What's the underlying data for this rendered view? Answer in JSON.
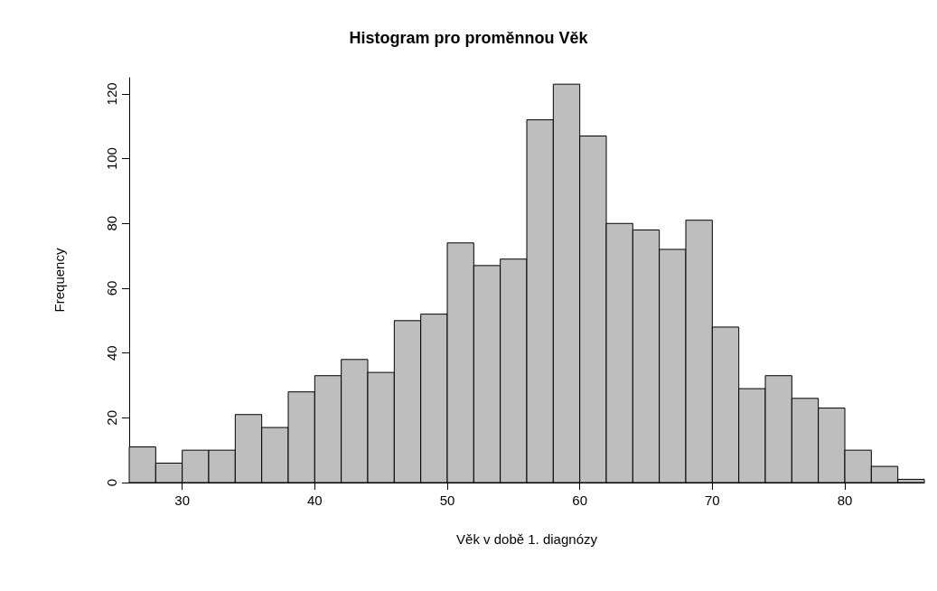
{
  "chart_data": {
    "type": "histogram",
    "title": "Histogram pro proměnnou Věk",
    "xlabel": "Věk v době 1. diagnózy",
    "ylabel": "Frequency",
    "bins": [
      26,
      28,
      30,
      32,
      34,
      36,
      38,
      40,
      42,
      44,
      46,
      48,
      50,
      52,
      54,
      56,
      58,
      60,
      62,
      64,
      66,
      68,
      70,
      72,
      74,
      76,
      78,
      80,
      82,
      84,
      86
    ],
    "values": [
      11,
      6,
      10,
      10,
      21,
      17,
      28,
      33,
      38,
      34,
      50,
      52,
      74,
      67,
      69,
      112,
      123,
      107,
      80,
      78,
      72,
      81,
      48,
      29,
      33,
      26,
      23,
      10,
      5,
      1
    ],
    "color": "#bebebe",
    "xlim": [
      26,
      86
    ],
    "xticks": [
      30,
      40,
      50,
      60,
      70,
      80
    ],
    "ylim": [
      0,
      125
    ],
    "yticks": [
      0,
      20,
      40,
      60,
      80,
      100,
      120
    ],
    "grid": false
  }
}
